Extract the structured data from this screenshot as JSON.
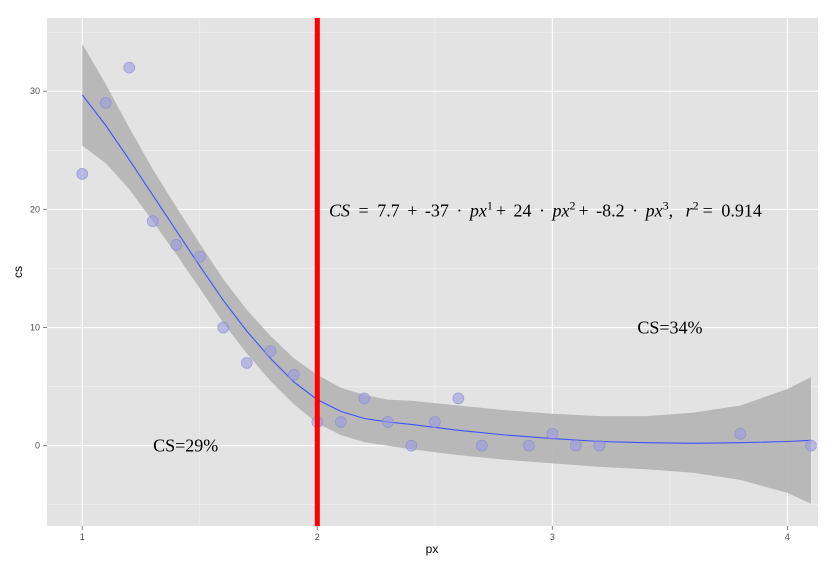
{
  "chart_data": {
    "type": "scatter",
    "xlabel": "px",
    "ylabel": "cs",
    "xlim": [
      0.85,
      4.13
    ],
    "ylim": [
      -6.8,
      36.2
    ],
    "x_ticks": [
      1,
      2,
      3,
      4
    ],
    "y_ticks": [
      0,
      10,
      20,
      30
    ],
    "x_tick_labels": [
      "1",
      "2",
      "3",
      "4"
    ],
    "y_tick_labels": [
      "0",
      "10",
      "20",
      "30"
    ],
    "grid": true,
    "points": [
      {
        "x": 1.0,
        "y": 23
      },
      {
        "x": 1.1,
        "y": 29
      },
      {
        "x": 1.2,
        "y": 32
      },
      {
        "x": 1.3,
        "y": 19
      },
      {
        "x": 1.4,
        "y": 17
      },
      {
        "x": 1.5,
        "y": 16
      },
      {
        "x": 1.6,
        "y": 10
      },
      {
        "x": 1.7,
        "y": 7
      },
      {
        "x": 1.8,
        "y": 8
      },
      {
        "x": 1.9,
        "y": 6
      },
      {
        "x": 2.0,
        "y": 2
      },
      {
        "x": 2.1,
        "y": 2
      },
      {
        "x": 2.2,
        "y": 4
      },
      {
        "x": 2.3,
        "y": 2
      },
      {
        "x": 2.4,
        "y": 0
      },
      {
        "x": 2.5,
        "y": 2
      },
      {
        "x": 2.6,
        "y": 4
      },
      {
        "x": 2.7,
        "y": 0
      },
      {
        "x": 2.9,
        "y": 0
      },
      {
        "x": 3.0,
        "y": 1
      },
      {
        "x": 3.1,
        "y": 0
      },
      {
        "x": 3.2,
        "y": 0
      },
      {
        "x": 3.8,
        "y": 1
      },
      {
        "x": 4.1,
        "y": 0
      }
    ],
    "fit_line": [
      {
        "x": 1.0,
        "y": 29.7
      },
      {
        "x": 1.1,
        "y": 27.1
      },
      {
        "x": 1.2,
        "y": 24.2
      },
      {
        "x": 1.3,
        "y": 21.2
      },
      {
        "x": 1.4,
        "y": 18.2
      },
      {
        "x": 1.5,
        "y": 15.2
      },
      {
        "x": 1.6,
        "y": 12.3
      },
      {
        "x": 1.7,
        "y": 9.7
      },
      {
        "x": 1.8,
        "y": 7.4
      },
      {
        "x": 1.9,
        "y": 5.4
      },
      {
        "x": 2.0,
        "y": 3.9
      },
      {
        "x": 2.1,
        "y": 2.9
      },
      {
        "x": 2.2,
        "y": 2.3
      },
      {
        "x": 2.3,
        "y": 2.0
      },
      {
        "x": 2.4,
        "y": 1.8
      },
      {
        "x": 2.6,
        "y": 1.3
      },
      {
        "x": 2.8,
        "y": 0.9
      },
      {
        "x": 3.0,
        "y": 0.6
      },
      {
        "x": 3.2,
        "y": 0.35
      },
      {
        "x": 3.4,
        "y": 0.25
      },
      {
        "x": 3.6,
        "y": 0.2
      },
      {
        "x": 3.8,
        "y": 0.25
      },
      {
        "x": 4.0,
        "y": 0.35
      },
      {
        "x": 4.1,
        "y": 0.45
      }
    ],
    "ci_band": [
      {
        "x": 1.0,
        "lo": 25.4,
        "hi": 34.0
      },
      {
        "x": 1.1,
        "lo": 23.9,
        "hi": 30.6
      },
      {
        "x": 1.2,
        "lo": 21.7,
        "hi": 26.9
      },
      {
        "x": 1.3,
        "lo": 19.0,
        "hi": 23.4
      },
      {
        "x": 1.4,
        "lo": 16.2,
        "hi": 20.2
      },
      {
        "x": 1.5,
        "lo": 13.3,
        "hi": 17.1
      },
      {
        "x": 1.6,
        "lo": 10.4,
        "hi": 14.1
      },
      {
        "x": 1.7,
        "lo": 7.8,
        "hi": 11.5
      },
      {
        "x": 1.8,
        "lo": 5.5,
        "hi": 9.3
      },
      {
        "x": 1.9,
        "lo": 3.5,
        "hi": 7.4
      },
      {
        "x": 2.0,
        "lo": 1.9,
        "hi": 6.0
      },
      {
        "x": 2.1,
        "lo": 0.9,
        "hi": 4.9
      },
      {
        "x": 2.2,
        "lo": 0.3,
        "hi": 4.3
      },
      {
        "x": 2.3,
        "lo": 0.0,
        "hi": 3.9
      },
      {
        "x": 2.4,
        "lo": -0.3,
        "hi": 3.8
      },
      {
        "x": 2.6,
        "lo": -0.8,
        "hi": 3.4
      },
      {
        "x": 2.8,
        "lo": -1.2,
        "hi": 3.0
      },
      {
        "x": 3.0,
        "lo": -1.5,
        "hi": 2.7
      },
      {
        "x": 3.2,
        "lo": -1.8,
        "hi": 2.5
      },
      {
        "x": 3.4,
        "lo": -2.0,
        "hi": 2.5
      },
      {
        "x": 3.6,
        "lo": -2.3,
        "hi": 2.8
      },
      {
        "x": 3.8,
        "lo": -2.9,
        "hi": 3.4
      },
      {
        "x": 4.0,
        "lo": -4.0,
        "hi": 4.8
      },
      {
        "x": 4.1,
        "lo": -4.9,
        "hi": 5.8
      }
    ],
    "vline": {
      "x": 2.0,
      "color": "#ff0000"
    },
    "colors": {
      "panel": "#e3e3e3",
      "grid": "#ffffff",
      "points": "#9999e0",
      "fit_line": "#3f52ff",
      "band": "#b3b3b3"
    },
    "annotations": [
      {
        "text": "CS=29%",
        "x": 1.44,
        "y": 0
      },
      {
        "text": "CS=34%",
        "x": 3.5,
        "y": 10
      }
    ],
    "equation": {
      "lhs": "CS",
      "equals": "=",
      "c0": "7.7",
      "plus": "+",
      "c1": "-37",
      "dot": "·",
      "var": "px",
      "p1": "1",
      "c2": "24",
      "p2": "2",
      "c3": "-8.2",
      "p3": "3",
      "comma": ",",
      "r": "r",
      "rp": "2",
      "r2": "0.914",
      "x": 2.02,
      "y": 20
    }
  }
}
